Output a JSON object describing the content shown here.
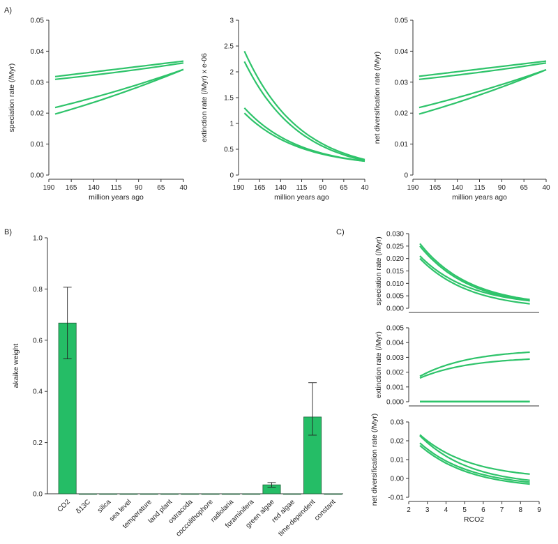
{
  "panel_labels": {
    "a": "A)",
    "b": "B)",
    "c": "C)"
  },
  "chart_data": [
    {
      "id": "A1",
      "type": "line",
      "xlabel": "million years ago",
      "ylabel": "speciation rate (/Myr)",
      "xlim": [
        190,
        40
      ],
      "ylim": [
        0,
        0.05
      ],
      "xticks": [
        190,
        165,
        140,
        115,
        90,
        65,
        40
      ],
      "yticks": [
        0,
        0.01,
        0.02,
        0.03,
        0.04,
        0.05
      ],
      "ytick_labels": [
        "0.00",
        "0.01",
        "0.02",
        "0.03",
        "0.04",
        "0.05"
      ],
      "curve_type": "linear",
      "series": [
        {
          "name": "s1",
          "start": [
            183,
            0.0318
          ],
          "end": [
            40,
            0.0368
          ]
        },
        {
          "name": "s2",
          "start": [
            183,
            0.0309
          ],
          "end": [
            40,
            0.0362
          ]
        },
        {
          "name": "s3",
          "start": [
            183,
            0.0218
          ],
          "end": [
            40,
            0.0341
          ]
        },
        {
          "name": "s4",
          "start": [
            183,
            0.0197
          ],
          "end": [
            40,
            0.0341
          ]
        }
      ]
    },
    {
      "id": "A2",
      "type": "line",
      "xlabel": "million years ago",
      "ylabel": "extinction rate (/Myr) x e-06",
      "xlim": [
        190,
        40
      ],
      "ylim": [
        0,
        3
      ],
      "xticks": [
        190,
        165,
        140,
        115,
        90,
        65,
        40
      ],
      "yticks": [
        0,
        0.5,
        1,
        1.5,
        2,
        2.5,
        3
      ],
      "ytick_labels": [
        "0",
        "0.5",
        "1",
        "1.5",
        "2",
        "2.5",
        "3"
      ],
      "curve_type": "exp",
      "series": [
        {
          "name": "s1",
          "start": [
            183,
            2.4
          ],
          "end": [
            40,
            0.3
          ]
        },
        {
          "name": "s2",
          "start": [
            183,
            2.2
          ],
          "end": [
            40,
            0.28
          ]
        },
        {
          "name": "s3",
          "start": [
            183,
            1.3
          ],
          "end": [
            40,
            0.27
          ]
        },
        {
          "name": "s4",
          "start": [
            183,
            1.2
          ],
          "end": [
            40,
            0.27
          ]
        }
      ]
    },
    {
      "id": "A3",
      "type": "line",
      "xlabel": "million years ago",
      "ylabel": "net diversification rate (/Myr)",
      "xlim": [
        190,
        40
      ],
      "ylim": [
        0,
        0.05
      ],
      "xticks": [
        190,
        165,
        140,
        115,
        90,
        65,
        40
      ],
      "yticks": [
        0,
        0.01,
        0.02,
        0.03,
        0.04,
        0.05
      ],
      "ytick_labels": [
        "0",
        "0.01",
        "0.02",
        "0.03",
        "0.04",
        "0.05"
      ],
      "curve_type": "linear",
      "series": [
        {
          "name": "s1",
          "start": [
            183,
            0.0319
          ],
          "end": [
            40,
            0.0368
          ]
        },
        {
          "name": "s2",
          "start": [
            183,
            0.0309
          ],
          "end": [
            40,
            0.0362
          ]
        },
        {
          "name": "s3",
          "start": [
            183,
            0.0218
          ],
          "end": [
            40,
            0.034
          ]
        },
        {
          "name": "s4",
          "start": [
            183,
            0.0197
          ],
          "end": [
            40,
            0.034
          ]
        }
      ]
    },
    {
      "id": "B",
      "type": "bar",
      "xlabel": "",
      "ylabel": "akaike weight",
      "ylim": [
        0,
        1
      ],
      "yticks": [
        0,
        0.2,
        0.4,
        0.6,
        0.8,
        1.0
      ],
      "ytick_labels": [
        "0.0",
        "0.2",
        "0.4",
        "0.6",
        "0.8",
        "1.0"
      ],
      "categories": [
        "CO2",
        "δ13C",
        "silica",
        "sea level",
        "temperature",
        "land plant",
        "ostracoda",
        "coccolithophore",
        "radiolaria",
        "foraminifera",
        "green algae",
        "red algae",
        "time-dependent",
        "constant"
      ],
      "values": [
        0.667,
        0,
        0,
        0,
        0,
        0,
        0,
        0,
        0,
        0,
        0.035,
        0,
        0.3,
        0
      ],
      "error_low": [
        0.527,
        null,
        null,
        null,
        null,
        null,
        null,
        null,
        null,
        null,
        0.026,
        null,
        0.229,
        null
      ],
      "error_high": [
        0.807,
        null,
        null,
        null,
        null,
        null,
        null,
        null,
        null,
        null,
        0.044,
        null,
        0.434,
        null
      ]
    },
    {
      "id": "C1",
      "type": "line",
      "xlabel": "",
      "ylabel": "speciation rate (/Myr)",
      "xlim": [
        2,
        9
      ],
      "ylim": [
        0,
        0.03
      ],
      "yticks": [
        0,
        0.005,
        0.01,
        0.015,
        0.02,
        0.025,
        0.03
      ],
      "ytick_labels": [
        "0.000",
        "0.005",
        "0.010",
        "0.015",
        "0.020",
        "0.025",
        "0.030"
      ],
      "curve_type": "exp",
      "series": [
        {
          "name": "s1",
          "start": [
            2.6,
            0.026
          ],
          "end": [
            8.5,
            0.0035
          ]
        },
        {
          "name": "s2",
          "start": [
            2.6,
            0.025
          ],
          "end": [
            8.5,
            0.003
          ]
        },
        {
          "name": "s3",
          "start": [
            2.6,
            0.021
          ],
          "end": [
            8.5,
            0.003
          ]
        },
        {
          "name": "s4",
          "start": [
            2.6,
            0.02
          ],
          "end": [
            8.5,
            0.0018
          ]
        }
      ]
    },
    {
      "id": "C2",
      "type": "line",
      "xlabel": "",
      "ylabel": "extinction rate (/Myr)",
      "xlim": [
        2,
        9
      ],
      "ylim": [
        0,
        0.005
      ],
      "yticks": [
        0,
        0.001,
        0.002,
        0.003,
        0.004,
        0.005
      ],
      "ytick_labels": [
        "0.000",
        "0.001",
        "0.002",
        "0.003",
        "0.004",
        "0.005"
      ],
      "curve_type": "exp",
      "series": [
        {
          "name": "s1",
          "start": [
            2.6,
            0.00172
          ],
          "end": [
            8.5,
            0.00335
          ]
        },
        {
          "name": "s2",
          "start": [
            2.6,
            0.0016
          ],
          "end": [
            8.5,
            0.00288
          ]
        },
        {
          "name": "s3",
          "start": [
            2.6,
            2e-05
          ],
          "end": [
            8.5,
            2e-05
          ]
        },
        {
          "name": "s4",
          "start": [
            2.6,
            0.0
          ],
          "end": [
            8.5,
            0.0
          ]
        }
      ]
    },
    {
      "id": "C3",
      "type": "line",
      "xlabel": "RCO2",
      "ylabel": "net diversification rate (/Myr)",
      "xlim": [
        2,
        9
      ],
      "ylim": [
        -0.01,
        0.03
      ],
      "xticks": [
        2,
        3,
        4,
        5,
        6,
        7,
        8,
        9
      ],
      "yticks": [
        -0.01,
        0,
        0.01,
        0.02,
        0.03
      ],
      "ytick_labels": [
        "-0.01",
        "0.00",
        "0.01",
        "0.02",
        "0.03"
      ],
      "curve_type": "exp",
      "series": [
        {
          "name": "s1",
          "start": [
            2.6,
            0.0232
          ],
          "end": [
            8.5,
            0.0023
          ]
        },
        {
          "name": "s2",
          "start": [
            2.6,
            0.0227
          ],
          "end": [
            8.5,
            -0.001
          ]
        },
        {
          "name": "s3",
          "start": [
            2.6,
            0.0188
          ],
          "end": [
            8.5,
            -0.002
          ]
        },
        {
          "name": "s4",
          "start": [
            2.6,
            0.0175
          ],
          "end": [
            8.5,
            -0.003
          ]
        }
      ]
    }
  ]
}
